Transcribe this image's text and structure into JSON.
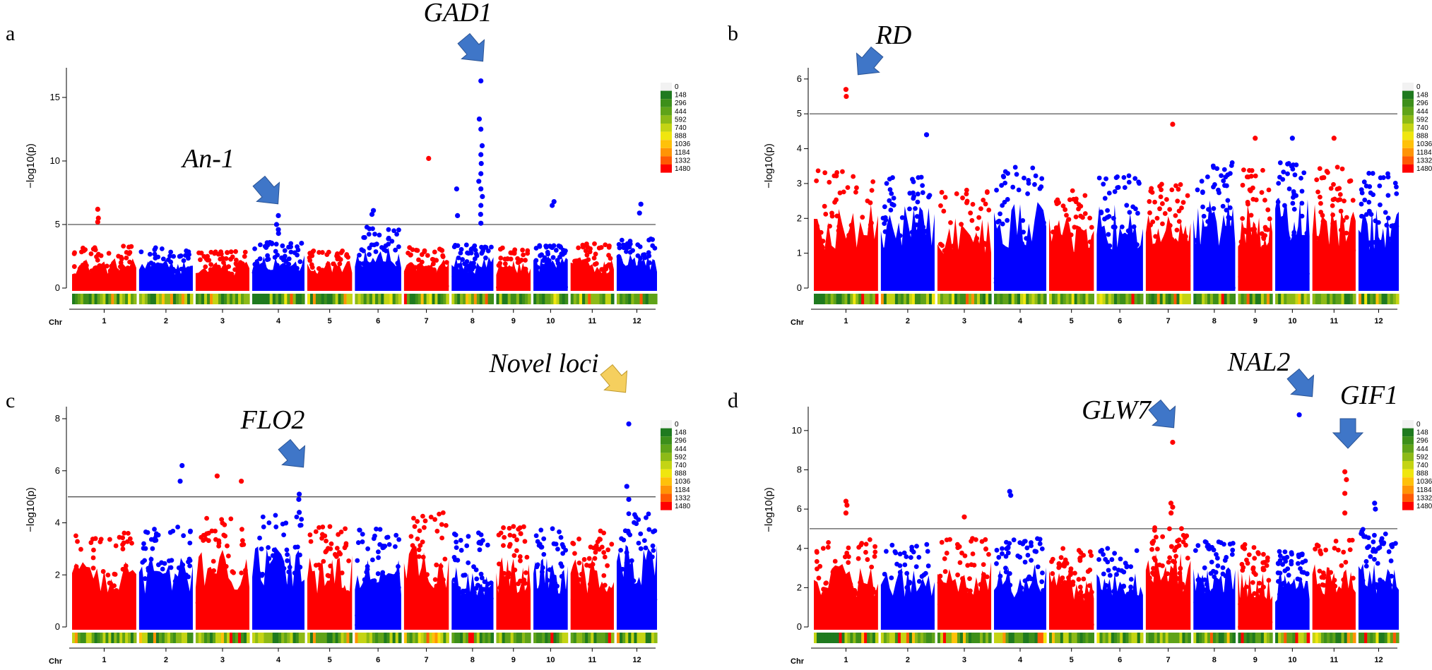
{
  "chromosome_axis_label": "Chr",
  "y_axis_label": "−log10(p)",
  "density_legend": {
    "values": [
      "0",
      "148",
      "296",
      "444",
      "592",
      "740",
      "888",
      "1036",
      "1184",
      "1332",
      "1480"
    ],
    "colors": [
      "#f2f2f2",
      "#1f7a1f",
      "#3d8f1a",
      "#5fa319",
      "#8dba17",
      "#c4d414",
      "#f0e60f",
      "#ffc10a",
      "#ff9406",
      "#ff5a03",
      "#ff0000"
    ]
  },
  "colors": {
    "odd_chr": "#ff0000",
    "even_chr": "#0000ff",
    "threshold_line": "#555555",
    "arrow_blue": "#3f76c8",
    "arrow_yellow": "#f5cf5e"
  },
  "chart_data": [
    {
      "panel": "a",
      "type": "scatter",
      "ylim": [
        0,
        17
      ],
      "yticks": [
        "0",
        "5",
        "10",
        "15"
      ],
      "threshold": 5,
      "chromosomes": [
        "1",
        "2",
        "3",
        "4",
        "5",
        "6",
        "7",
        "8",
        "9",
        "10",
        "11",
        "12"
      ],
      "chr_lengths": [
        43,
        36,
        36,
        35,
        30,
        31,
        30,
        28,
        23,
        23,
        29,
        27
      ],
      "bulk_height": [
        3.3,
        3.2,
        2.9,
        3.6,
        3.0,
        4.8,
        3.2,
        3.4,
        3.2,
        3.5,
        3.5,
        3.9
      ],
      "peaks": [
        {
          "chr": 4,
          "pos": 0.5,
          "values": [
            5.7,
            5.0,
            4.6,
            4.3
          ]
        },
        {
          "chr": 7,
          "pos": 0.55,
          "values": [
            10.2
          ]
        },
        {
          "chr": 8,
          "pos": 0.7,
          "values": [
            16.3,
            13.3,
            12.5,
            11.2,
            10.5,
            9.8,
            9.0,
            8.4,
            7.8,
            7.2,
            6.5,
            5.8,
            5.1
          ]
        },
        {
          "chr": 8,
          "pos": 0.12,
          "values": [
            7.8,
            5.7
          ]
        },
        {
          "chr": 1,
          "pos": 0.4,
          "values": [
            6.2,
            5.5,
            5.2
          ]
        },
        {
          "chr": 6,
          "pos": 0.4,
          "values": [
            6.1,
            5.8
          ]
        },
        {
          "chr": 10,
          "pos": 0.6,
          "values": [
            6.8,
            6.5
          ]
        },
        {
          "chr": 12,
          "pos": 0.6,
          "values": [
            6.6,
            5.9
          ]
        }
      ],
      "annotations": [
        {
          "label": "GAD1",
          "target": {
            "chr": 8,
            "pos": 0.7,
            "value": 16.3
          },
          "arrow_color": "blue"
        },
        {
          "label": "An-1",
          "target": {
            "chr": 4,
            "pos": 0.5,
            "value": 5.7
          },
          "arrow_color": "blue"
        }
      ]
    },
    {
      "panel": "b",
      "type": "scatter",
      "ylim": [
        0,
        6.2
      ],
      "yticks": [
        "0",
        "1",
        "2",
        "3",
        "4",
        "5",
        "6"
      ],
      "threshold": 5,
      "chromosomes": [
        "1",
        "2",
        "3",
        "4",
        "5",
        "6",
        "7",
        "8",
        "9",
        "10",
        "11",
        "12"
      ],
      "chr_lengths": [
        43,
        36,
        36,
        35,
        30,
        31,
        30,
        28,
        23,
        23,
        29,
        27
      ],
      "bulk_height": [
        3.4,
        3.3,
        2.9,
        3.5,
        2.8,
        3.4,
        3.0,
        3.6,
        3.4,
        3.6,
        3.5,
        3.3
      ],
      "peaks": [
        {
          "chr": 1,
          "pos": 0.5,
          "values": [
            5.7,
            5.5
          ]
        },
        {
          "chr": 7,
          "pos": 0.6,
          "values": [
            4.7
          ]
        },
        {
          "chr": 2,
          "pos": 0.85,
          "values": [
            4.4
          ]
        },
        {
          "chr": 11,
          "pos": 0.5,
          "values": [
            4.3
          ]
        },
        {
          "chr": 9,
          "pos": 0.5,
          "values": [
            4.3
          ]
        },
        {
          "chr": 10,
          "pos": 0.5,
          "values": [
            4.3
          ]
        }
      ],
      "annotations": [
        {
          "label": "RD",
          "target": {
            "chr": 1,
            "pos": 0.5,
            "value": 5.7
          },
          "arrow_color": "blue"
        }
      ]
    },
    {
      "panel": "c",
      "type": "scatter",
      "ylim": [
        0,
        8.3
      ],
      "yticks": [
        "0",
        "2",
        "4",
        "6",
        "8"
      ],
      "threshold": 5,
      "chromosomes": [
        "1",
        "2",
        "3",
        "4",
        "5",
        "6",
        "7",
        "8",
        "9",
        "10",
        "11",
        "12"
      ],
      "chr_lengths": [
        43,
        36,
        36,
        35,
        30,
        31,
        30,
        28,
        23,
        23,
        29,
        27
      ],
      "bulk_height": [
        3.7,
        3.9,
        4.2,
        4.3,
        3.9,
        3.8,
        4.4,
        3.7,
        3.9,
        3.8,
        3.7,
        4.4
      ],
      "peaks": [
        {
          "chr": 4,
          "pos": 0.9,
          "values": [
            5.1,
            4.9,
            4.4
          ]
        },
        {
          "chr": 2,
          "pos": 0.8,
          "values": [
            6.2,
            5.6
          ]
        },
        {
          "chr": 3,
          "pos": 0.4,
          "values": [
            5.8
          ]
        },
        {
          "chr": 3,
          "pos": 0.85,
          "values": [
            5.6
          ]
        },
        {
          "chr": 12,
          "pos": 0.3,
          "values": [
            7.8,
            5.4,
            4.9
          ]
        }
      ],
      "annotations": [
        {
          "label": "Novel loci",
          "target": {
            "chr": 12,
            "pos": 0.3,
            "value": 7.8
          },
          "arrow_color": "yellow"
        },
        {
          "label": "FLO2",
          "target": {
            "chr": 4,
            "pos": 0.9,
            "value": 5.1
          },
          "arrow_color": "blue"
        }
      ]
    },
    {
      "panel": "d",
      "type": "scatter",
      "ylim": [
        0,
        11
      ],
      "yticks": [
        "0",
        "2",
        "4",
        "6",
        "8",
        "10"
      ],
      "threshold": 5,
      "chromosomes": [
        "1",
        "2",
        "3",
        "4",
        "5",
        "6",
        "7",
        "8",
        "9",
        "10",
        "11",
        "12"
      ],
      "chr_lengths": [
        43,
        36,
        36,
        35,
        30,
        31,
        30,
        28,
        23,
        23,
        29,
        27
      ],
      "bulk_height": [
        4.5,
        4.2,
        4.6,
        4.5,
        4.0,
        4.0,
        5.2,
        4.4,
        4.2,
        3.9,
        4.5,
        5.0
      ],
      "peaks": [
        {
          "chr": 7,
          "pos": 0.6,
          "values": [
            9.4,
            6.3,
            6.1,
            5.8
          ]
        },
        {
          "chr": 10,
          "pos": 0.7,
          "values": [
            10.8
          ]
        },
        {
          "chr": 11,
          "pos": 0.75,
          "values": [
            7.9,
            7.5,
            6.8,
            5.8
          ]
        },
        {
          "chr": 1,
          "pos": 0.5,
          "values": [
            6.4,
            6.2,
            5.8
          ]
        },
        {
          "chr": 4,
          "pos": 0.3,
          "values": [
            6.9,
            6.7
          ]
        },
        {
          "chr": 3,
          "pos": 0.5,
          "values": [
            5.6
          ]
        },
        {
          "chr": 12,
          "pos": 0.4,
          "values": [
            6.3,
            6.0
          ]
        }
      ],
      "annotations": [
        {
          "label": "GLW7",
          "target": {
            "chr": 7,
            "pos": 0.6,
            "value": 9.4
          },
          "arrow_color": "blue"
        },
        {
          "label": "NAL2",
          "target": {
            "chr": 10,
            "pos": 0.7,
            "value": 10.8
          },
          "arrow_color": "blue"
        },
        {
          "label": "GIF1",
          "target": {
            "chr": 11,
            "pos": 0.75,
            "value": 7.9
          },
          "arrow_color": "blue"
        }
      ]
    }
  ]
}
